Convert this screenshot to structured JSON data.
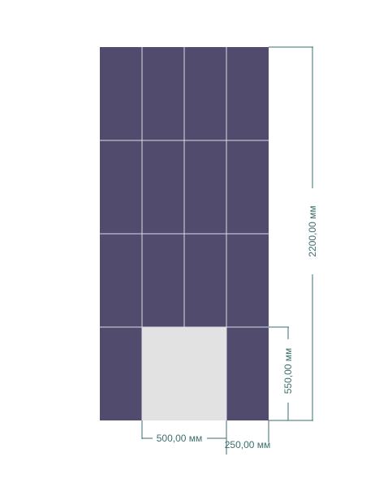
{
  "colors": {
    "tile": "#514c6e",
    "grout": "#dcdce6",
    "cutout": "#e2e2e2",
    "dimension": "#3d6e6e"
  },
  "layout": {
    "columns": 4,
    "rows": 4,
    "cutout_rows": [
      3
    ],
    "cutout_columns": [
      1,
      2
    ]
  },
  "dimensions": {
    "total_height": "2200,00 мм",
    "cutout_height": "550,00 мм",
    "cutout_width": "500,00 мм",
    "side_offset": "250,00 мм"
  }
}
